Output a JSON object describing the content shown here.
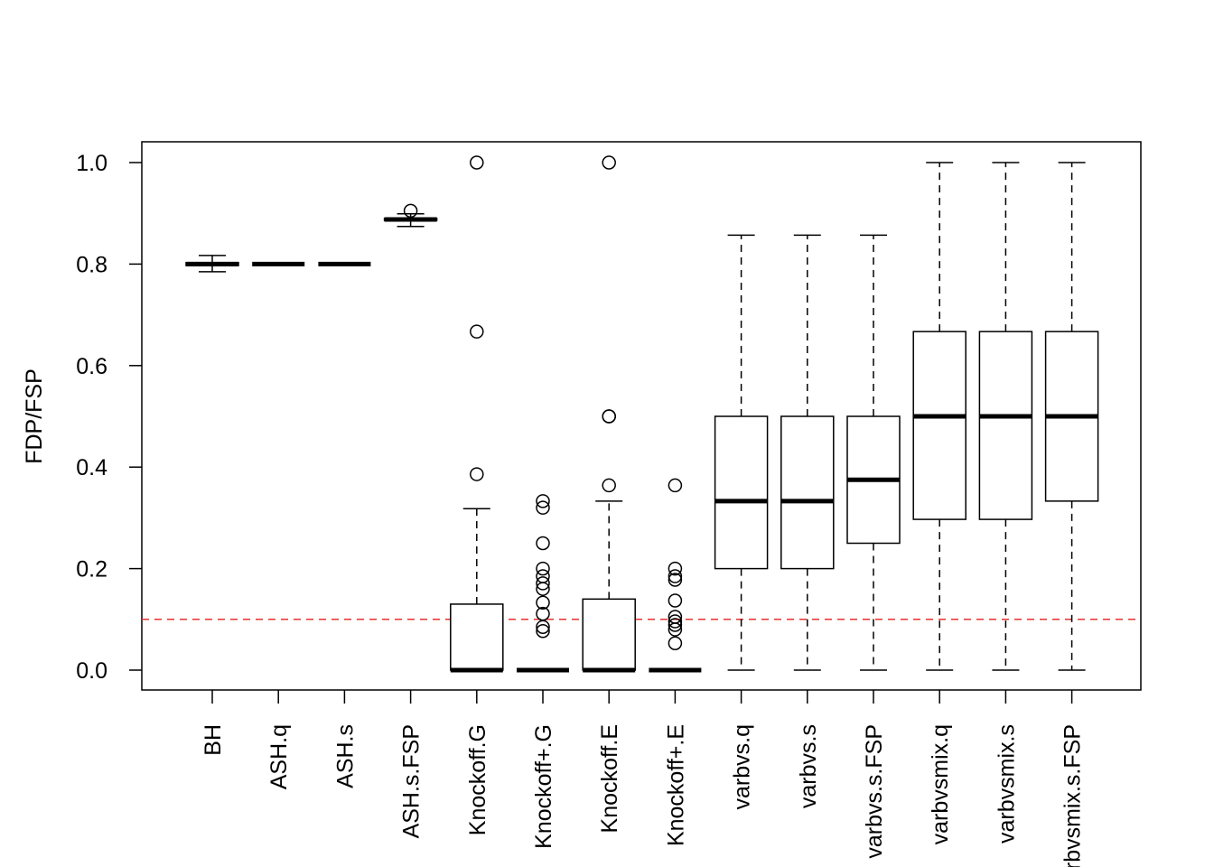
{
  "chart_data": {
    "type": "boxplot",
    "title": "",
    "xlabel": "",
    "ylabel": "FDP/FSP",
    "ylim": [
      -0.04,
      1.04
    ],
    "yticks": [
      "0.0",
      "0.2",
      "0.4",
      "0.6",
      "0.8",
      "1.0"
    ],
    "grid": false,
    "reference_line": {
      "y": 0.1,
      "color": "#e8312f",
      "style": "dashed"
    },
    "categories": [
      "BH",
      "ASH.q",
      "ASH.s",
      "ASH.s.FSP",
      "Knockoff.G",
      "Knockoff+.G",
      "Knockoff.E",
      "Knockoff+.E",
      "varbvs.q",
      "varbvs.s",
      "varbvs.s.FSP",
      "varbvsmix.q",
      "varbvsmix.s",
      "varbvsmix.s.FSP"
    ],
    "boxes": [
      {
        "whisker_low": 0.785,
        "q1": 0.797,
        "median": 0.8,
        "q3": 0.803,
        "whisker_high": 0.817,
        "outliers": []
      },
      {
        "whisker_low": 0.8,
        "q1": 0.8,
        "median": 0.8,
        "q3": 0.8,
        "whisker_high": 0.8,
        "outliers": []
      },
      {
        "whisker_low": 0.8,
        "q1": 0.8,
        "median": 0.8,
        "q3": 0.8,
        "whisker_high": 0.8,
        "outliers": []
      },
      {
        "whisker_low": 0.874,
        "q1": 0.886,
        "median": 0.888,
        "q3": 0.89,
        "whisker_high": 0.899,
        "outliers": [
          0.905
        ]
      },
      {
        "whisker_low": 0,
        "q1": 0,
        "median": 0,
        "q3": 0.13,
        "whisker_high": 0.318,
        "outliers": [
          0.386,
          0.667,
          1.0
        ]
      },
      {
        "whisker_low": 0,
        "q1": 0,
        "median": 0,
        "q3": 0,
        "whisker_high": 0,
        "outliers": [
          0.333,
          0.32,
          0.25,
          0.2,
          0.185,
          0.171,
          0.16,
          0.133,
          0.111,
          0.085,
          0.077
        ]
      },
      {
        "whisker_low": 0,
        "q1": 0,
        "median": 0,
        "q3": 0.14,
        "whisker_high": 0.333,
        "outliers": [
          0.364,
          0.5,
          0.5,
          1.0
        ]
      },
      {
        "whisker_low": 0,
        "q1": 0,
        "median": 0,
        "q3": 0,
        "whisker_high": 0,
        "outliers": [
          0.364,
          0.2,
          0.185,
          0.178,
          0.137,
          0.105,
          0.096,
          0.089,
          0.08,
          0.053
        ]
      },
      {
        "whisker_low": 0,
        "q1": 0.2,
        "median": 0.333,
        "q3": 0.5,
        "whisker_high": 0.857,
        "outliers": []
      },
      {
        "whisker_low": 0,
        "q1": 0.2,
        "median": 0.333,
        "q3": 0.5,
        "whisker_high": 0.857,
        "outliers": []
      },
      {
        "whisker_low": 0,
        "q1": 0.25,
        "median": 0.375,
        "q3": 0.5,
        "whisker_high": 0.857,
        "outliers": []
      },
      {
        "whisker_low": 0,
        "q1": 0.297,
        "median": 0.5,
        "q3": 0.667,
        "whisker_high": 1.0,
        "outliers": []
      },
      {
        "whisker_low": 0,
        "q1": 0.297,
        "median": 0.5,
        "q3": 0.667,
        "whisker_high": 1.0,
        "outliers": []
      },
      {
        "whisker_low": 0,
        "q1": 0.333,
        "median": 0.5,
        "q3": 0.667,
        "whisker_high": 1.0,
        "outliers": []
      }
    ]
  }
}
